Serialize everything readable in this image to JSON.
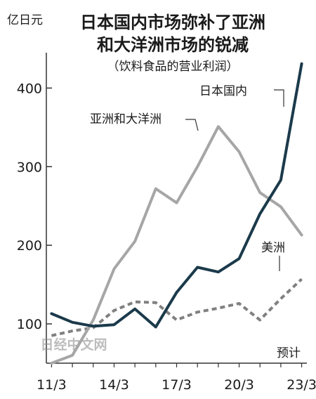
{
  "chart_data": {
    "type": "line",
    "title": "日本国内市场弥补了亚洲和大洋洲市场的锐减",
    "title_lines": [
      "日本国内市场弥补了亚洲",
      "和大洋洲市场的锐减"
    ],
    "subtitle": "（饮料食品的营业利润）",
    "ylabel": "亿日元",
    "xlabel": "",
    "ylim": [
      50,
      445
    ],
    "yticks": [
      100,
      200,
      300,
      400
    ],
    "x": [
      2011,
      2012,
      2013,
      2014,
      2015,
      2016,
      2017,
      2018,
      2019,
      2020,
      2021,
      2022,
      2023
    ],
    "xlim": [
      2010.75,
      2023.25
    ],
    "xticks": [
      {
        "value": 2011,
        "label": "11/3"
      },
      {
        "value": 2014,
        "label": "14/3"
      },
      {
        "value": 2017,
        "label": "17/3"
      },
      {
        "value": 2020,
        "label": "20/3"
      },
      {
        "value": 2023,
        "label": "23/3"
      }
    ],
    "forecast_note": "预计",
    "watermark": "日经中文网",
    "series": [
      {
        "name": "日本国内",
        "color": "#1b3a4b",
        "dash": "solid",
        "values": [
          113,
          102,
          97,
          99,
          119,
          96,
          140,
          172,
          166,
          183,
          240,
          283,
          431
        ]
      },
      {
        "name": "亚洲和大洋洲",
        "color": "#a6a6a6",
        "dash": "solid",
        "values": [
          50,
          60,
          105,
          170,
          205,
          272,
          254,
          300,
          351,
          319,
          267,
          249,
          213
        ]
      },
      {
        "name": "美洲",
        "color": "#808080",
        "dash": "dashed",
        "values": [
          85,
          91,
          95,
          117,
          128,
          127,
          105,
          115,
          120,
          126,
          105,
          132,
          157
        ]
      }
    ]
  }
}
